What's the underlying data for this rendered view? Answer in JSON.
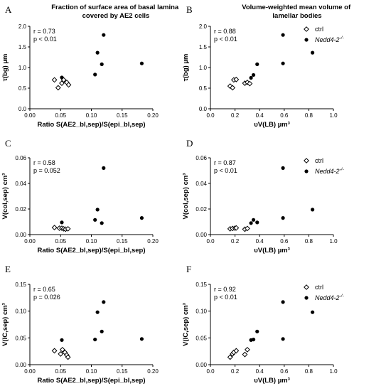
{
  "column_titles": [
    "Fraction of surface  area of basal lamina\ncovered by AE2 cells",
    "Volume-weighted mean volume of\nlamellar bodies"
  ],
  "legend": {
    "ctrl": "ctrl",
    "mutant": "Nedd4-2",
    "mutant_sup": "-/-"
  },
  "chart_data": [
    {
      "panel": "A",
      "type": "scatter",
      "xlabel": "Ratio S(AE2_bl,sep)/S(epi_bl,sep)",
      "ylabel": "τ(bg) µm",
      "xlim": [
        0,
        0.2
      ],
      "ylim": [
        0,
        2.0
      ],
      "xticks": [
        "0.00",
        "0.05",
        "0.10",
        "0.15",
        "0.20"
      ],
      "yticks": [
        "0.0",
        "0.5",
        "1.0",
        "1.5",
        "2.0"
      ],
      "stats": [
        "r = 0.73",
        "p < 0.01"
      ],
      "show_legend": false,
      "series": [
        {
          "name": "ctrl",
          "marker": "open-diamond",
          "x": [
            0.04,
            0.046,
            0.052,
            0.055,
            0.06,
            0.063
          ],
          "y": [
            0.7,
            0.51,
            0.62,
            0.7,
            0.64,
            0.58
          ]
        },
        {
          "name": "Nedd4-2",
          "marker": "filled-circle",
          "x": [
            0.052,
            0.106,
            0.11,
            0.117,
            0.12,
            0.182
          ],
          "y": [
            0.76,
            0.83,
            1.36,
            1.08,
            1.79,
            1.1
          ]
        }
      ]
    },
    {
      "panel": "B",
      "type": "scatter",
      "xlabel": "υV(LB) µm³",
      "ylabel": "τ(bg) µm",
      "xlim": [
        0,
        1.0
      ],
      "ylim": [
        0,
        2.0
      ],
      "xticks": [
        "0.0",
        "0.2",
        "0.4",
        "0.6",
        "0.8",
        "1.0"
      ],
      "yticks": [
        "0.0",
        "0.5",
        "1.0",
        "1.5",
        "2.0"
      ],
      "stats": [
        "r = 0.88",
        "p < 0.01"
      ],
      "show_legend": true,
      "series": [
        {
          "name": "ctrl",
          "marker": "open-diamond",
          "x": [
            0.16,
            0.18,
            0.19,
            0.21,
            0.28,
            0.3,
            0.32
          ],
          "y": [
            0.55,
            0.51,
            0.7,
            0.71,
            0.62,
            0.64,
            0.61
          ]
        },
        {
          "name": "Nedd4-2",
          "marker": "filled-circle",
          "x": [
            0.33,
            0.35,
            0.38,
            0.59,
            0.59,
            0.83
          ],
          "y": [
            0.75,
            0.82,
            1.08,
            1.79,
            1.1,
            1.36
          ]
        }
      ]
    },
    {
      "panel": "C",
      "type": "scatter",
      "xlabel": "Ratio S(AE2_bl,sep)/S(epi_bl,sep)",
      "ylabel": "V(col,sep) cm³",
      "xlim": [
        0,
        0.2
      ],
      "ylim": [
        0,
        0.06
      ],
      "xticks": [
        "0.00",
        "0.05",
        "0.10",
        "0.15",
        "0.20"
      ],
      "yticks": [
        "0.00",
        "0.02",
        "0.04",
        "0.06"
      ],
      "stats": [
        "r = 0.58",
        "p = 0.052"
      ],
      "show_legend": false,
      "series": [
        {
          "name": "ctrl",
          "marker": "open-diamond",
          "x": [
            0.04,
            0.048,
            0.052,
            0.055,
            0.058,
            0.062
          ],
          "y": [
            0.0055,
            0.005,
            0.005,
            0.0045,
            0.0042,
            0.0045
          ]
        },
        {
          "name": "Nedd4-2",
          "marker": "filled-circle",
          "x": [
            0.052,
            0.106,
            0.11,
            0.117,
            0.12,
            0.182
          ],
          "y": [
            0.0095,
            0.0115,
            0.0195,
            0.009,
            0.052,
            0.013
          ]
        }
      ]
    },
    {
      "panel": "D",
      "type": "scatter",
      "xlabel": "υV(LB) µm³",
      "ylabel": "V(col,sep) cm³",
      "xlim": [
        0,
        1.0
      ],
      "ylim": [
        0,
        0.06
      ],
      "xticks": [
        "0.0",
        "0.2",
        "0.4",
        "0.6",
        "0.8",
        "1.0"
      ],
      "yticks": [
        "0.00",
        "0.02",
        "0.04",
        "0.06"
      ],
      "stats": [
        "r = 0.87",
        "p < 0.01"
      ],
      "show_legend": true,
      "series": [
        {
          "name": "ctrl",
          "marker": "open-diamond",
          "x": [
            0.16,
            0.18,
            0.2,
            0.21,
            0.28,
            0.3
          ],
          "y": [
            0.0045,
            0.0048,
            0.005,
            0.0052,
            0.0042,
            0.0048
          ]
        },
        {
          "name": "Nedd4-2",
          "marker": "filled-circle",
          "x": [
            0.33,
            0.35,
            0.38,
            0.59,
            0.59,
            0.83
          ],
          "y": [
            0.009,
            0.0115,
            0.0095,
            0.052,
            0.013,
            0.0195
          ]
        }
      ]
    },
    {
      "panel": "E",
      "type": "scatter",
      "xlabel": "Ratio S(AE2_bl,sep)/S(epi_bl,sep)",
      "ylabel": "V(IC,sep) cm³",
      "xlim": [
        0,
        0.2
      ],
      "ylim": [
        0,
        0.15
      ],
      "xticks": [
        "0.00",
        "0.05",
        "0.10",
        "0.15",
        "0.20"
      ],
      "yticks": [
        "0.00",
        "0.05",
        "0.10",
        "0.15"
      ],
      "stats": [
        "r = 0.65",
        "p = 0.026"
      ],
      "show_legend": false,
      "series": [
        {
          "name": "ctrl",
          "marker": "open-diamond",
          "x": [
            0.04,
            0.05,
            0.053,
            0.057,
            0.06,
            0.062
          ],
          "y": [
            0.026,
            0.02,
            0.028,
            0.023,
            0.018,
            0.014
          ]
        },
        {
          "name": "Nedd4-2",
          "marker": "filled-circle",
          "x": [
            0.052,
            0.106,
            0.11,
            0.117,
            0.12,
            0.182
          ],
          "y": [
            0.046,
            0.047,
            0.098,
            0.062,
            0.117,
            0.048
          ]
        }
      ]
    },
    {
      "panel": "F",
      "type": "scatter",
      "xlabel": "υV(LB) µm³",
      "ylabel": "V(IC,sep) cm³",
      "xlim": [
        0,
        1.0
      ],
      "ylim": [
        0,
        0.15
      ],
      "xticks": [
        "0.0",
        "0.2",
        "0.4",
        "0.6",
        "0.8",
        "1.0"
      ],
      "yticks": [
        "0.00",
        "0.05",
        "0.10",
        "0.15"
      ],
      "stats": [
        "r = 0.92",
        "p < 0.01"
      ],
      "show_legend": true,
      "series": [
        {
          "name": "ctrl",
          "marker": "open-diamond",
          "x": [
            0.16,
            0.18,
            0.19,
            0.21,
            0.28,
            0.3
          ],
          "y": [
            0.014,
            0.02,
            0.023,
            0.026,
            0.019,
            0.028
          ]
        },
        {
          "name": "Nedd4-2",
          "marker": "filled-circle",
          "x": [
            0.33,
            0.35,
            0.38,
            0.59,
            0.59,
            0.83
          ],
          "y": [
            0.046,
            0.047,
            0.062,
            0.117,
            0.048,
            0.098
          ]
        }
      ]
    }
  ]
}
